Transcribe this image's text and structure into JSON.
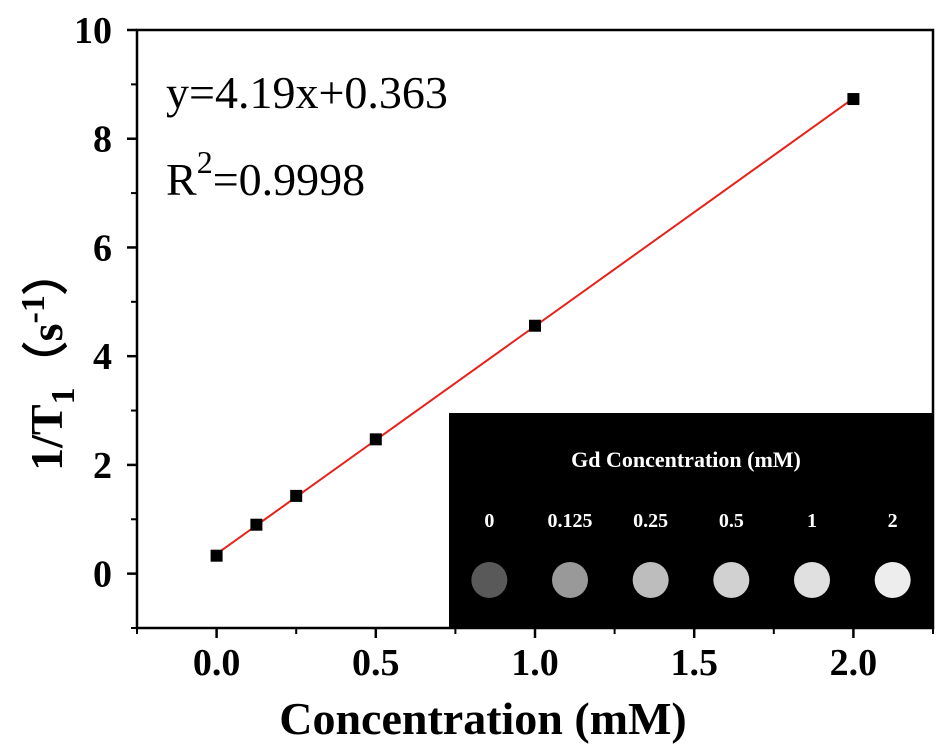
{
  "chart_data": {
    "type": "scatter",
    "xlabel": "Concentration (mM)",
    "ylabel_main": "1/T",
    "ylabel_sub": "1",
    "ylabel_unit": "（s",
    "ylabel_sup": "-1",
    "ylabel_close": "）",
    "xlim": [
      -0.25,
      2.25
    ],
    "ylim": [
      -1,
      10
    ],
    "x_ticks": [
      "0.0",
      "0.5",
      "1.0",
      "1.5",
      "2.0"
    ],
    "x_tick_values": [
      0,
      0.5,
      1.0,
      1.5,
      2.0
    ],
    "y_ticks": [
      "0",
      "2",
      "4",
      "6",
      "8",
      "10"
    ],
    "y_tick_values": [
      0,
      2,
      4,
      6,
      8,
      10
    ],
    "series": [
      {
        "x": [
          0,
          0.125,
          0.25,
          0.5,
          1.0,
          2.0
        ],
        "y": [
          0.33,
          0.9,
          1.43,
          2.47,
          4.56,
          8.73
        ]
      }
    ],
    "fit": {
      "slope": 4.19,
      "intercept": 0.363,
      "x_range": [
        0,
        2.0
      ],
      "color": "#e8211a"
    },
    "equation": "y=4.19x+0.363",
    "r2_prefix": "R",
    "r2_sup": "2",
    "r2_value": "=0.9998",
    "marker_color": "#000000"
  },
  "inset": {
    "title": "Gd Concentration (mM)",
    "labels": [
      "0",
      "0.125",
      "0.25",
      "0.5",
      "1",
      "2"
    ],
    "intensities": [
      0.35,
      0.6,
      0.74,
      0.82,
      0.88,
      0.93
    ],
    "background": "#000000"
  }
}
